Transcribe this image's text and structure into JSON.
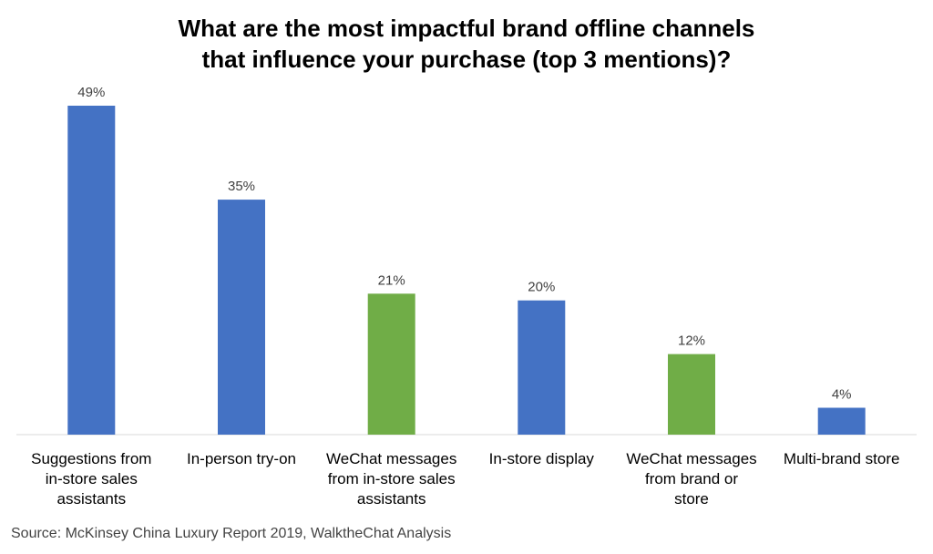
{
  "chart_data": {
    "type": "bar",
    "title_lines": [
      "What are the most impactful brand offline channels",
      "that influence your purchase (top 3 mentions)?"
    ],
    "categories": [
      "Suggestions from in-store sales assistants",
      "In-person try-on",
      "WeChat messages from in-store sales assistants",
      "In-store display",
      "WeChat messages from brand or store",
      "Multi-brand store"
    ],
    "category_label_lines": [
      [
        "Suggestions from",
        "in-store sales",
        "assistants"
      ],
      [
        "In-person try-on"
      ],
      [
        "WeChat messages",
        "from in-store sales",
        "assistants"
      ],
      [
        "In-store display"
      ],
      [
        "WeChat messages",
        "from brand or",
        "store"
      ],
      [
        "Multi-brand store"
      ]
    ],
    "values": [
      49,
      35,
      21,
      20,
      12,
      4
    ],
    "value_labels": [
      "49%",
      "35%",
      "21%",
      "20%",
      "12%",
      "4%"
    ],
    "bar_colors": [
      "#4472C4",
      "#4472C4",
      "#70AD47",
      "#4472C4",
      "#70AD47",
      "#4472C4"
    ],
    "ylim": [
      0,
      49
    ],
    "xlabel": "",
    "ylabel": "",
    "grid": false,
    "legend": "none"
  },
  "source": "Source: McKinsey China Luxury Report 2019, WalktheChat Analysis"
}
